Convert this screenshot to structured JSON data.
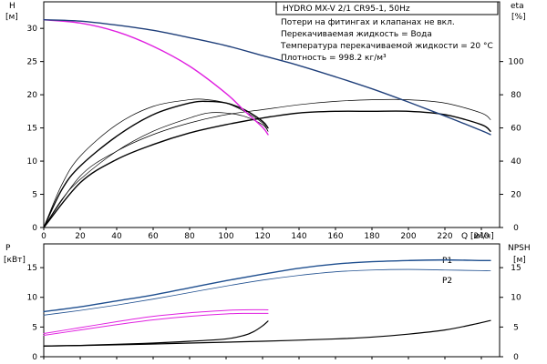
{
  "chart_data": {
    "type": "line",
    "title": "HYDRO MX-V 2/1 CR95-1, 50Hz",
    "notes": [
      "Потери на фитингах и клапанах не вкл.",
      "Перекачиваемая жидкость = Вода",
      "Температура перекачиваемой жидкости = 20 °C",
      "Плотность = 998.2 кг/м³"
    ],
    "x_axis": {
      "label": "Q [м³/ч]",
      "range": [
        0,
        250
      ],
      "ticks": [
        0,
        20,
        40,
        60,
        80,
        100,
        120,
        140,
        160,
        180,
        200,
        220,
        240
      ]
    },
    "head_axis": {
      "label_top": "H",
      "label_unit": "[м]",
      "range": [
        0,
        34
      ],
      "ticks": [
        0,
        5,
        10,
        15,
        20,
        25,
        30
      ]
    },
    "eta_axis": {
      "label_top": "eta",
      "label_unit": "[%]",
      "range": [
        0,
        136
      ],
      "ticks": [
        0,
        20,
        40,
        60,
        80,
        100
      ]
    },
    "power_axis": {
      "label_top": "P",
      "label_unit": "[кВт]",
      "range": [
        0,
        19
      ],
      "ticks": [
        0,
        5,
        10,
        15
      ]
    },
    "npsh_axis": {
      "label_top": "NPSH",
      "label_unit": "[м]",
      "range": [
        0,
        19
      ],
      "ticks": [
        0,
        5,
        10,
        15
      ]
    },
    "curve_labels": {
      "p1": "P1",
      "p2": "P2"
    },
    "colors": {
      "system_head": "#1f3f7a",
      "single_pump": "#e020e0",
      "efficiency": "#000000",
      "power": "#1f4f8f",
      "npsh": "#000000"
    },
    "series": {
      "head_system": {
        "x": [
          0,
          20,
          40,
          60,
          80,
          100,
          120,
          140,
          160,
          180,
          200,
          220,
          240,
          245
        ],
        "y": [
          31.3,
          31.1,
          30.5,
          29.7,
          28.6,
          27.4,
          25.9,
          24.4,
          22.7,
          20.9,
          18.9,
          16.8,
          14.6,
          14.0
        ]
      },
      "head_single": {
        "x": [
          0,
          20,
          40,
          60,
          80,
          100,
          110,
          120,
          123
        ],
        "y": [
          31.3,
          30.8,
          29.5,
          27.3,
          24.3,
          20.2,
          17.6,
          15.1,
          14.0
        ]
      },
      "eta_single_1": {
        "x": [
          0,
          10,
          20,
          40,
          60,
          80,
          90,
          100,
          110,
          120,
          123
        ],
        "y": [
          0,
          23,
          37,
          55,
          68,
          75,
          76,
          75,
          71,
          64,
          60
        ]
      },
      "eta_single_2": {
        "x": [
          0,
          10,
          20,
          40,
          60,
          80,
          90,
          100,
          110,
          120,
          123
        ],
        "y": [
          0,
          26,
          43,
          62,
          73,
          77,
          77,
          75,
          70,
          63,
          58
        ]
      },
      "eta_single_3": {
        "x": [
          0,
          10,
          20,
          40,
          60,
          80,
          90,
          100,
          110,
          120,
          123
        ],
        "y": [
          0,
          17,
          29,
          46,
          58,
          66,
          69,
          69,
          67,
          62,
          58
        ]
      },
      "eta_system_1": {
        "x": [
          0,
          20,
          40,
          60,
          80,
          100,
          120,
          140,
          160,
          180,
          200,
          220,
          240,
          245
        ],
        "y": [
          0,
          27,
          41,
          50,
          57,
          62,
          66,
          69,
          70,
          70,
          70,
          68,
          62,
          58
        ]
      },
      "eta_system_2": {
        "x": [
          0,
          20,
          40,
          60,
          80,
          100,
          120,
          140,
          160,
          180,
          200,
          220,
          240,
          245
        ],
        "y": [
          0,
          31,
          46,
          56,
          63,
          68,
          71,
          74,
          76,
          77,
          77,
          75,
          69,
          65
        ]
      },
      "p1_system": {
        "x": [
          0,
          20,
          40,
          60,
          80,
          100,
          120,
          140,
          160,
          180,
          200,
          220,
          240,
          245
        ],
        "y": [
          7.6,
          8.4,
          9.4,
          10.4,
          11.6,
          12.8,
          13.9,
          14.9,
          15.6,
          16.0,
          16.2,
          16.3,
          16.2,
          16.2
        ]
      },
      "p2_system": {
        "x": [
          0,
          20,
          40,
          60,
          80,
          100,
          120,
          140,
          160,
          180,
          200,
          220,
          240,
          245
        ],
        "y": [
          7.0,
          7.8,
          8.7,
          9.7,
          10.8,
          11.9,
          12.9,
          13.7,
          14.3,
          14.6,
          14.7,
          14.6,
          14.5,
          14.5
        ]
      },
      "p1_single": {
        "x": [
          0,
          20,
          40,
          60,
          80,
          100,
          110,
          123
        ],
        "y": [
          3.9,
          4.9,
          5.9,
          6.8,
          7.4,
          7.8,
          7.9,
          7.9
        ]
      },
      "p2_single": {
        "x": [
          0,
          20,
          40,
          60,
          80,
          100,
          110,
          123
        ],
        "y": [
          3.6,
          4.5,
          5.4,
          6.2,
          6.8,
          7.2,
          7.3,
          7.3
        ]
      },
      "npsh_single": {
        "x": [
          0,
          20,
          40,
          60,
          80,
          100,
          110,
          115,
          120,
          123
        ],
        "y": [
          1.8,
          1.9,
          2.1,
          2.3,
          2.6,
          3.0,
          3.6,
          4.2,
          5.2,
          6.0
        ]
      },
      "npsh_system": {
        "x": [
          0,
          40,
          80,
          120,
          160,
          180,
          200,
          220,
          235,
          245
        ],
        "y": [
          1.8,
          2.0,
          2.3,
          2.6,
          3.0,
          3.3,
          3.8,
          4.5,
          5.4,
          6.1
        ]
      }
    }
  }
}
